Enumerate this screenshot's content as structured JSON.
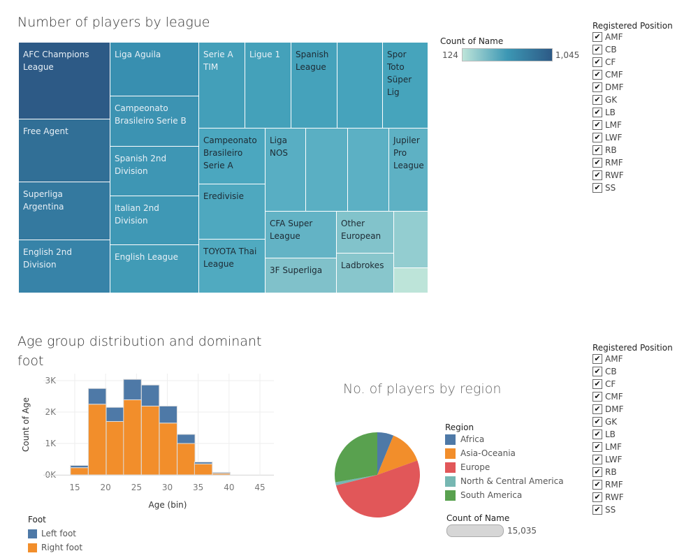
{
  "treemap": {
    "title": "Number of players by league",
    "legend": {
      "title": "Count of Name",
      "min": "124",
      "max": "1,045",
      "color_low": "#bde4d9",
      "color_high": "#2d5a86"
    },
    "cells": [
      {
        "label": "AFC Champions League",
        "color": "#2d5a86",
        "text": "#e8f0f6"
      },
      {
        "label": "Free Agent",
        "color": "#316f96",
        "text": "#e8f0f6"
      },
      {
        "label": "Superliga Argentina",
        "color": "#34799f",
        "text": "#e8f0f6"
      },
      {
        "label": "English 2nd Division",
        "color": "#3783a8",
        "text": "#e8f0f6"
      },
      {
        "label": "Liga Aguila",
        "color": "#388fb0",
        "text": "#e8f0f6"
      },
      {
        "label": "Campeonato Brasileiro Serie B",
        "color": "#3c93b2",
        "text": "#e8f0f6"
      },
      {
        "label": "Spanish 2nd Division",
        "color": "#3e96b4",
        "text": "#e8f0f6"
      },
      {
        "label": "Italian 2nd Division",
        "color": "#3f98b5",
        "text": "#e8f0f6"
      },
      {
        "label": "English League",
        "color": "#419bb6",
        "text": "#e8f0f6"
      },
      {
        "label": "Serie A TIM",
        "color": "#439fb9",
        "text": "#e8f0f6"
      },
      {
        "label": "Ligue 1",
        "color": "#44a1ba",
        "text": "#e8f0f6"
      },
      {
        "label": "Spanish League",
        "color": "#45a2bb",
        "text": "#1d2a33"
      },
      {
        "label": "",
        "color": "#46a3bc",
        "text": "#1d2a33"
      },
      {
        "label": "Spor Toto Süper Lig",
        "color": "#46a4bc",
        "text": "#1d2a33"
      },
      {
        "label": "Campeonato Brasileiro Serie A",
        "color": "#4ba7bf",
        "text": "#1d2a33"
      },
      {
        "label": "Eredivisie",
        "color": "#4ea8bf",
        "text": "#1d2a33"
      },
      {
        "label": "TOYOTA Thai League",
        "color": "#50aac0",
        "text": "#1d2a33"
      },
      {
        "label": "Liga NOS",
        "color": "#58aec3",
        "text": "#1d2a33"
      },
      {
        "label": "",
        "color": "#5aafc3",
        "text": "#1d2a33"
      },
      {
        "label": "",
        "color": "#5cb0c4",
        "text": "#1d2a33"
      },
      {
        "label": "Jupiler Pro League",
        "color": "#5eb1c4",
        "text": "#1d2a33"
      },
      {
        "label": "CFA Super League",
        "color": "#63b3c5",
        "text": "#1d2a33"
      },
      {
        "label": "3F Superliga",
        "color": "#80c1ca",
        "text": "#1d2a33"
      },
      {
        "label": "Other European",
        "color": "#82c3cb",
        "text": "#1d2a33"
      },
      {
        "label": "Ladbrokes",
        "color": "#88c6cc",
        "text": "#1d2a33"
      },
      {
        "label": "",
        "color": "#93cdd0",
        "text": "#1d2a33"
      },
      {
        "label": "",
        "color": "#bde4d9",
        "text": "#1d2a33"
      }
    ]
  },
  "filter_top": {
    "title": "Registered Position",
    "items": [
      "AMF",
      "CB",
      "CF",
      "CMF",
      "DMF",
      "GK",
      "LB",
      "LMF",
      "LWF",
      "RB",
      "RMF",
      "RWF",
      "SS"
    ]
  },
  "filter_bottom": {
    "title": "Registered Position",
    "items": [
      "AMF",
      "CB",
      "CF",
      "CMF",
      "DMF",
      "GK",
      "LB",
      "LMF",
      "LWF",
      "RB",
      "RMF",
      "RWF",
      "SS"
    ]
  },
  "histogram": {
    "title": "Age group distribution and dominant foot",
    "legend_title": "Foot",
    "chart_data": {
      "type": "bar",
      "stacked": true,
      "xlabel": "Age (bin)",
      "ylabel": "Count of Age",
      "x_ticks": [
        "15",
        "20",
        "25",
        "30",
        "35",
        "40",
        "45"
      ],
      "y_ticks": [
        "0K",
        "1K",
        "2K",
        "3K"
      ],
      "xlim": [
        13,
        47
      ],
      "ylim": [
        0,
        3100
      ],
      "bin_starts": [
        14.3,
        17.2,
        20.1,
        22.9,
        25.8,
        28.7,
        31.6,
        34.4,
        37.3
      ],
      "bin_width": 2.88,
      "series": [
        {
          "name": "Right foot",
          "color": "#f28e2b",
          "values": [
            230,
            2250,
            1700,
            2390,
            2190,
            1650,
            1000,
            350,
            50
          ]
        },
        {
          "name": "Left foot",
          "color": "#4e79a7",
          "values": [
            70,
            500,
            450,
            650,
            670,
            540,
            290,
            60,
            30
          ]
        }
      ]
    }
  },
  "pie": {
    "title": "No. of players by region",
    "legend_title": "Region",
    "size_legend": {
      "title": "Count of Name",
      "value": "15,035"
    },
    "chart_data": {
      "type": "pie",
      "slices": [
        {
          "name": "Africa",
          "value": 6.2,
          "color": "#4e79a7"
        },
        {
          "name": "Asia-Oceania",
          "value": 13.3,
          "color": "#f28e2b"
        },
        {
          "name": "Europe",
          "value": 51.5,
          "color": "#e15759"
        },
        {
          "name": "North & Central America",
          "value": 1.2,
          "color": "#76b7b2"
        },
        {
          "name": "South America",
          "value": 27.8,
          "color": "#59a14f"
        }
      ]
    }
  }
}
